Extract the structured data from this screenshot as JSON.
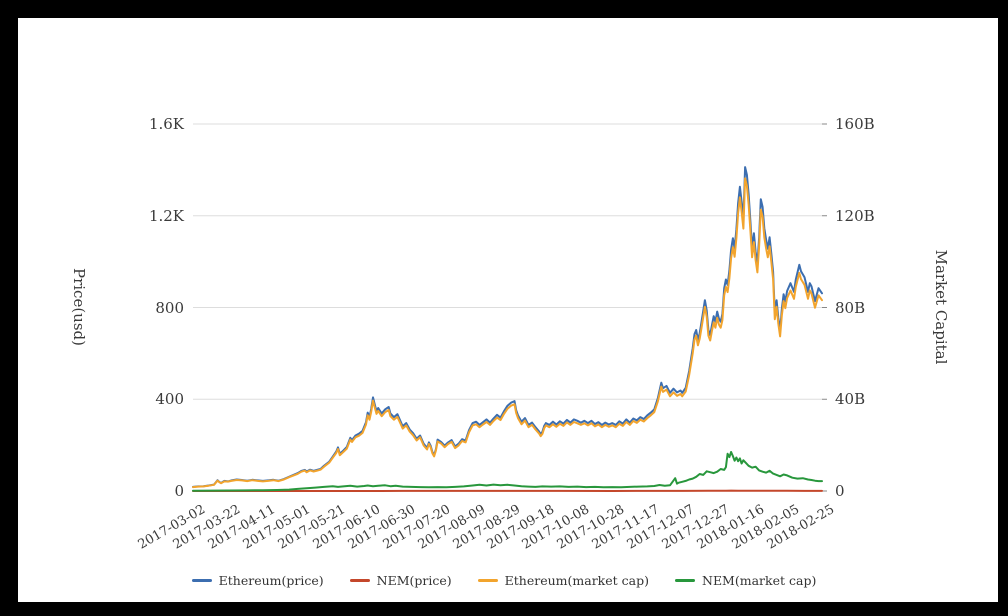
{
  "colors": {
    "frame": "#000000",
    "background": "#ffffff",
    "gridline": "#dddddd",
    "axis_line": "#555555",
    "tick_mark": "#888888",
    "text": "#3a3a3a"
  },
  "chart_data": {
    "type": "line",
    "title": "",
    "grid": true,
    "left_axis": {
      "title": "Price(usd)",
      "range": [
        0,
        1600
      ],
      "ticks": [
        {
          "label": "0",
          "value": 0
        },
        {
          "label": "400",
          "value": 400
        },
        {
          "label": "800",
          "value": 800
        },
        {
          "label": "1.2K",
          "value": 1200
        },
        {
          "label": "1.6K",
          "value": 1600
        }
      ]
    },
    "right_axis": {
      "title": "Market Capital",
      "range": [
        0,
        160
      ],
      "ticks": [
        {
          "label": "0",
          "value": 0
        },
        {
          "label": "40B",
          "value": 40
        },
        {
          "label": "80B",
          "value": 80
        },
        {
          "label": "120B",
          "value": 120
        },
        {
          "label": "160B",
          "value": 160
        }
      ]
    },
    "x_axis": {
      "tick_interval_days": 20,
      "range_days": [
        0,
        360
      ],
      "tick_labels": [
        "2017-03-02",
        "2017-03-22",
        "2017-04-11",
        "2017-05-01",
        "2017-05-21",
        "2017-06-10",
        "2017-06-30",
        "2017-07-20",
        "2017-08-09",
        "2017-08-29",
        "2017-09-18",
        "2017-10-08",
        "2017-10-28",
        "2017-11-17",
        "2017-12-07",
        "2017-12-27",
        "2018-01-16",
        "2018-02-05",
        "2018-02-25"
      ]
    },
    "legend": {
      "position": "bottom",
      "entries": [
        {
          "label": "Ethereum(price)",
          "color": "#3c6eb0"
        },
        {
          "label": "NEM(price)",
          "color": "#c4472b"
        },
        {
          "label": "Ethereum(market cap)",
          "color": "#f2a42d"
        },
        {
          "label": "NEM(market cap)",
          "color": "#28973c"
        }
      ]
    },
    "series": [
      {
        "name": "Ethereum(price)",
        "axis": "left",
        "unit": "USD",
        "color": "#3c6eb0",
        "days": [
          0,
          3,
          6,
          9,
          12,
          14,
          15,
          16,
          18,
          20,
          22,
          25,
          28,
          31,
          34,
          37,
          40,
          43,
          46,
          49,
          52,
          55,
          58,
          60,
          62,
          64,
          65,
          67,
          69,
          71,
          73,
          75,
          78,
          80,
          82,
          83,
          84,
          86,
          88,
          90,
          91,
          93,
          95,
          97,
          99,
          100,
          101,
          102,
          103,
          104,
          105,
          106,
          108,
          110,
          112,
          113,
          115,
          117,
          119,
          120,
          122,
          124,
          126,
          128,
          130,
          132,
          134,
          135,
          136,
          137,
          138,
          139,
          140,
          142,
          144,
          146,
          148,
          150,
          152,
          154,
          156,
          158,
          160,
          162,
          164,
          166,
          168,
          170,
          172,
          174,
          176,
          178,
          180,
          182,
          184,
          185,
          186,
          188,
          190,
          192,
          194,
          196,
          198,
          199,
          200,
          201,
          202,
          204,
          206,
          208,
          210,
          212,
          214,
          216,
          218,
          220,
          222,
          224,
          226,
          228,
          230,
          232,
          234,
          236,
          238,
          240,
          242,
          244,
          246,
          248,
          250,
          252,
          254,
          256,
          258,
          260,
          262,
          264,
          266,
          268,
          269,
          271,
          273,
          275,
          277,
          279,
          280,
          282,
          284,
          286,
          287,
          288,
          289,
          290,
          291,
          292,
          293,
          294,
          295,
          296,
          297,
          298,
          299,
          300,
          301,
          302,
          303,
          304,
          305,
          306,
          307,
          308,
          309,
          310,
          311,
          312,
          313,
          314,
          315,
          316,
          317,
          318,
          319,
          320,
          321,
          322,
          323,
          324,
          325,
          326,
          327,
          328,
          329,
          330,
          331,
          332,
          333,
          334,
          335,
          336,
          337,
          338,
          339,
          340,
          342,
          344,
          345,
          347,
          348,
          350,
          352,
          353,
          354,
          356,
          358,
          360
        ],
        "values": [
          18,
          20,
          21,
          24,
          28,
          47,
          40,
          35,
          44,
          42,
          46,
          50,
          48,
          45,
          49,
          46,
          44,
          46,
          49,
          45,
          52,
          62,
          72,
          78,
          87,
          92,
          85,
          93,
          88,
          92,
          96,
          110,
          128,
          150,
          172,
          190,
          162,
          176,
          192,
          232,
          222,
          242,
          250,
          262,
          300,
          342,
          322,
          358,
          408,
          378,
          348,
          362,
          338,
          356,
          366,
          338,
          322,
          335,
          300,
          282,
          296,
          268,
          252,
          228,
          242,
          206,
          188,
          212,
          198,
          170,
          156,
          182,
          224,
          214,
          198,
          212,
          222,
          194,
          206,
          226,
          220,
          266,
          296,
          302,
          288,
          300,
          312,
          298,
          316,
          332,
          320,
          348,
          372,
          385,
          392,
          352,
          330,
          302,
          318,
          288,
          298,
          278,
          260,
          248,
          258,
          284,
          296,
          288,
          302,
          290,
          304,
          294,
          310,
          298,
          312,
          306,
          298,
          306,
          296,
          306,
          292,
          300,
          288,
          298,
          290,
          296,
          288,
          304,
          294,
          312,
          298,
          316,
          308,
          322,
          314,
          330,
          342,
          356,
          404,
          472,
          448,
          458,
          428,
          446,
          430,
          438,
          428,
          450,
          524,
          622,
          684,
          702,
          658,
          688,
          734,
          784,
          832,
          788,
          702,
          680,
          722,
          762,
          738,
          782,
          752,
          738,
          772,
          884,
          922,
          898,
          962,
          1052,
          1102,
          1058,
          1142,
          1254,
          1326,
          1262,
          1186,
          1412,
          1378,
          1296,
          1176,
          1056,
          1124,
          1044,
          988,
          1104,
          1272,
          1238,
          1146,
          1096,
          1056,
          1106,
          1036,
          956,
          776,
          832,
          756,
          698,
          792,
          858,
          826,
          872,
          906,
          868,
          922,
          986,
          958,
          932,
          868,
          906,
          892,
          828,
          884,
          862
        ]
      },
      {
        "name": "NEM(price)",
        "axis": "left",
        "unit": "USD",
        "color": "#c4472b",
        "days": [
          0,
          30,
          60,
          90,
          120,
          150,
          180,
          210,
          240,
          260,
          280,
          295,
          300,
          305,
          308,
          312,
          316,
          320,
          330,
          340,
          350,
          360
        ],
        "values": [
          0.01,
          0.02,
          0.05,
          0.18,
          0.25,
          0.28,
          0.3,
          0.22,
          0.2,
          0.25,
          0.5,
          0.8,
          0.95,
          1.2,
          1.9,
          1.4,
          1.5,
          1.2,
          1.0,
          0.7,
          0.55,
          0.45
        ]
      },
      {
        "name": "Ethereum(market cap)",
        "axis": "right",
        "unit": "B USD",
        "color": "#f2a42d",
        "days": [
          0,
          3,
          6,
          9,
          12,
          14,
          15,
          16,
          18,
          20,
          22,
          25,
          28,
          31,
          34,
          37,
          40,
          43,
          46,
          49,
          52,
          55,
          58,
          60,
          62,
          64,
          65,
          67,
          69,
          71,
          73,
          75,
          78,
          80,
          82,
          83,
          84,
          86,
          88,
          90,
          91,
          93,
          95,
          97,
          99,
          100,
          101,
          102,
          103,
          104,
          105,
          106,
          108,
          110,
          112,
          113,
          115,
          117,
          119,
          120,
          122,
          124,
          126,
          128,
          130,
          132,
          134,
          135,
          136,
          137,
          138,
          139,
          140,
          142,
          144,
          146,
          148,
          150,
          152,
          154,
          156,
          158,
          160,
          162,
          164,
          166,
          168,
          170,
          172,
          174,
          176,
          178,
          180,
          182,
          184,
          185,
          186,
          188,
          190,
          192,
          194,
          196,
          198,
          199,
          200,
          201,
          202,
          204,
          206,
          208,
          210,
          212,
          214,
          216,
          218,
          220,
          222,
          224,
          226,
          228,
          230,
          232,
          234,
          236,
          238,
          240,
          242,
          244,
          246,
          248,
          250,
          252,
          254,
          256,
          258,
          260,
          262,
          264,
          266,
          268,
          269,
          271,
          273,
          275,
          277,
          279,
          280,
          282,
          284,
          286,
          287,
          288,
          289,
          290,
          291,
          292,
          293,
          294,
          295,
          296,
          297,
          298,
          299,
          300,
          301,
          302,
          303,
          304,
          305,
          306,
          307,
          308,
          309,
          310,
          311,
          312,
          313,
          314,
          315,
          316,
          317,
          318,
          319,
          320,
          321,
          322,
          323,
          324,
          325,
          326,
          327,
          328,
          329,
          330,
          331,
          332,
          333,
          334,
          335,
          336,
          337,
          338,
          339,
          340,
          342,
          344,
          345,
          347,
          348,
          350,
          352,
          353,
          354,
          356,
          358,
          360
        ],
        "values": [
          1.7,
          1.9,
          2.0,
          2.3,
          2.7,
          4.5,
          3.9,
          3.4,
          4.2,
          4.1,
          4.4,
          4.8,
          4.6,
          4.3,
          4.7,
          4.4,
          4.2,
          4.4,
          4.7,
          4.3,
          5.0,
          6.0,
          6.9,
          7.5,
          8.4,
          8.9,
          8.2,
          9.0,
          8.5,
          8.9,
          9.3,
          10.6,
          12.4,
          14.5,
          16.6,
          18.3,
          15.6,
          17.0,
          18.5,
          22.4,
          21.4,
          23.4,
          24.1,
          25.3,
          29.0,
          33.0,
          31.1,
          34.5,
          39.4,
          36.5,
          33.6,
          34.9,
          32.6,
          34.4,
          35.3,
          32.6,
          31.1,
          32.3,
          29.0,
          27.2,
          28.6,
          25.9,
          24.3,
          22.0,
          23.4,
          19.9,
          18.1,
          20.5,
          19.1,
          16.4,
          15.1,
          17.6,
          21.6,
          20.7,
          19.1,
          20.5,
          21.4,
          18.7,
          19.9,
          21.8,
          21.2,
          25.7,
          28.6,
          29.1,
          27.8,
          29.0,
          30.1,
          28.8,
          30.5,
          32.0,
          30.9,
          33.6,
          35.9,
          37.2,
          37.8,
          34.0,
          31.8,
          29.1,
          30.7,
          27.8,
          28.8,
          26.8,
          25.1,
          23.9,
          24.9,
          27.4,
          28.6,
          27.8,
          29.1,
          28.0,
          29.3,
          28.4,
          29.9,
          28.8,
          30.1,
          29.5,
          28.8,
          29.5,
          28.6,
          29.5,
          28.2,
          29.0,
          27.8,
          28.8,
          28.0,
          28.6,
          27.8,
          29.3,
          28.4,
          30.1,
          28.8,
          30.5,
          29.7,
          31.1,
          30.3,
          31.8,
          33.0,
          34.4,
          39.0,
          45.5,
          43.2,
          44.2,
          41.3,
          43.0,
          41.5,
          42.3,
          41.3,
          43.4,
          50.6,
          60.0,
          66.0,
          67.7,
          63.5,
          66.4,
          70.8,
          75.7,
          80.3,
          76.0,
          67.7,
          65.6,
          69.7,
          73.5,
          71.2,
          75.5,
          72.6,
          71.2,
          74.5,
          85.3,
          89.0,
          86.7,
          92.8,
          101.5,
          106.3,
          102.1,
          110.2,
          121.0,
          128.0,
          121.8,
          114.4,
          136.3,
          133.0,
          125.1,
          113.5,
          101.9,
          108.5,
          100.7,
          95.3,
          106.5,
          122.7,
          119.5,
          110.6,
          105.8,
          101.9,
          106.7,
          100.0,
          92.3,
          74.9,
          80.3,
          73.0,
          67.4,
          76.4,
          82.8,
          79.7,
          84.1,
          87.4,
          83.8,
          89.0,
          95.1,
          92.4,
          89.9,
          83.8,
          87.4,
          86.1,
          79.9,
          85.3,
          83.2
        ]
      },
      {
        "name": "NEM(market cap)",
        "axis": "right",
        "unit": "B USD",
        "color": "#28973c",
        "days": [
          0,
          10,
          20,
          30,
          40,
          48,
          55,
          60,
          65,
          70,
          75,
          80,
          83,
          86,
          90,
          94,
          98,
          100,
          103,
          106,
          110,
          113,
          116,
          120,
          125,
          130,
          135,
          140,
          145,
          150,
          155,
          160,
          164,
          168,
          172,
          176,
          180,
          184,
          188,
          192,
          196,
          200,
          205,
          210,
          215,
          220,
          225,
          230,
          235,
          240,
          245,
          250,
          255,
          260,
          264,
          267,
          270,
          273,
          276,
          277,
          278,
          280,
          282,
          284,
          286,
          288,
          290,
          292,
          294,
          296,
          298,
          300,
          302,
          304,
          305,
          306,
          307,
          308,
          309,
          310,
          311,
          312,
          313,
          314,
          315,
          316,
          318,
          320,
          322,
          324,
          326,
          328,
          330,
          332,
          334,
          336,
          338,
          340,
          343,
          346,
          349,
          352,
          354,
          356,
          358,
          360
        ],
        "values": [
          0.15,
          0.18,
          0.2,
          0.28,
          0.35,
          0.45,
          0.6,
          0.9,
          1.2,
          1.5,
          1.8,
          2.1,
          1.8,
          2.0,
          2.3,
          1.9,
          2.2,
          2.4,
          2.1,
          2.3,
          2.5,
          2.1,
          2.3,
          1.9,
          1.8,
          1.7,
          1.6,
          1.7,
          1.6,
          1.8,
          2.0,
          2.4,
          2.7,
          2.4,
          2.8,
          2.5,
          2.7,
          2.4,
          2.1,
          1.9,
          1.8,
          2.0,
          1.9,
          2.0,
          1.8,
          1.9,
          1.7,
          1.8,
          1.6,
          1.7,
          1.6,
          1.8,
          1.9,
          2.0,
          2.2,
          2.6,
          2.3,
          2.5,
          5.6,
          3.2,
          3.6,
          4.0,
          4.4,
          5.0,
          5.4,
          6.2,
          7.4,
          7.0,
          8.6,
          8.2,
          7.8,
          8.4,
          9.6,
          9.2,
          10.4,
          16.2,
          14.8,
          17.0,
          15.2,
          13.2,
          14.6,
          13.0,
          14.2,
          12.0,
          13.4,
          12.6,
          11.0,
          10.2,
          10.6,
          9.0,
          8.4,
          8.0,
          8.8,
          7.6,
          7.0,
          6.4,
          7.2,
          6.8,
          5.8,
          5.4,
          5.6,
          5.0,
          4.8,
          4.5,
          4.3,
          4.3
        ]
      }
    ]
  }
}
